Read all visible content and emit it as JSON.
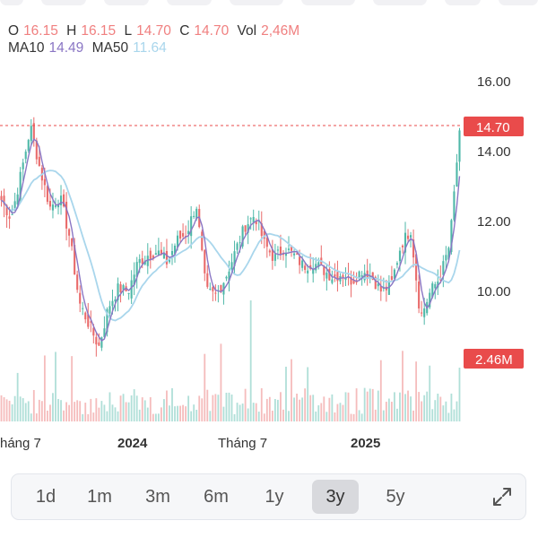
{
  "ohlc": {
    "o_label": "O",
    "o_value": "16.15",
    "h_label": "H",
    "h_value": "16.15",
    "l_label": "L",
    "l_value": "14.70",
    "c_label": "C",
    "c_value": "14.70",
    "vol_label": "Vol",
    "vol_value": "2,46M"
  },
  "ma": {
    "ma10_label": "MA10",
    "ma10_value": "14.49",
    "ma50_label": "MA50",
    "ma50_value": "11.64"
  },
  "colors": {
    "up": "#4fb8a8",
    "down": "#e96b6b",
    "ma10": "#8a76c4",
    "ma50": "#a9d6ec",
    "badge": "#e94b4b"
  },
  "chart_data": {
    "type": "candlestick",
    "y_ticks": [
      "16.00",
      "14.00",
      "12.00",
      "10.00"
    ],
    "ylim": [
      8.6,
      16.3
    ],
    "x_labels": [
      "háng 7",
      "2024",
      "Tháng 7",
      "2025"
    ],
    "current_price_label": "14.70",
    "current_price": 14.7,
    "volume_label": "2.46M",
    "price_path": [
      12.8,
      12.3,
      13.5,
      14.8,
      13.6,
      12.6,
      12.9,
      11.8,
      10.0,
      9.4,
      8.8,
      9.9,
      10.4,
      10.3,
      11.1,
      11.3,
      11.4,
      11.1,
      11.7,
      11.9,
      12.7,
      10.3,
      10.2,
      10.7,
      11.4,
      12.1,
      12.4,
      11.6,
      11.2,
      11.5,
      11.3,
      11.0,
      11.1,
      10.9,
      10.7,
      10.8,
      10.6,
      10.9,
      10.7,
      10.3,
      10.5,
      11.6,
      12.0,
      9.6,
      10.3,
      10.7,
      11.6,
      14.7
    ]
  },
  "range_buttons": [
    "1d",
    "1m",
    "3m",
    "6m",
    "1y",
    "3y",
    "5y"
  ],
  "active_range": "3y",
  "expand_icon": "expand-arrows-icon"
}
